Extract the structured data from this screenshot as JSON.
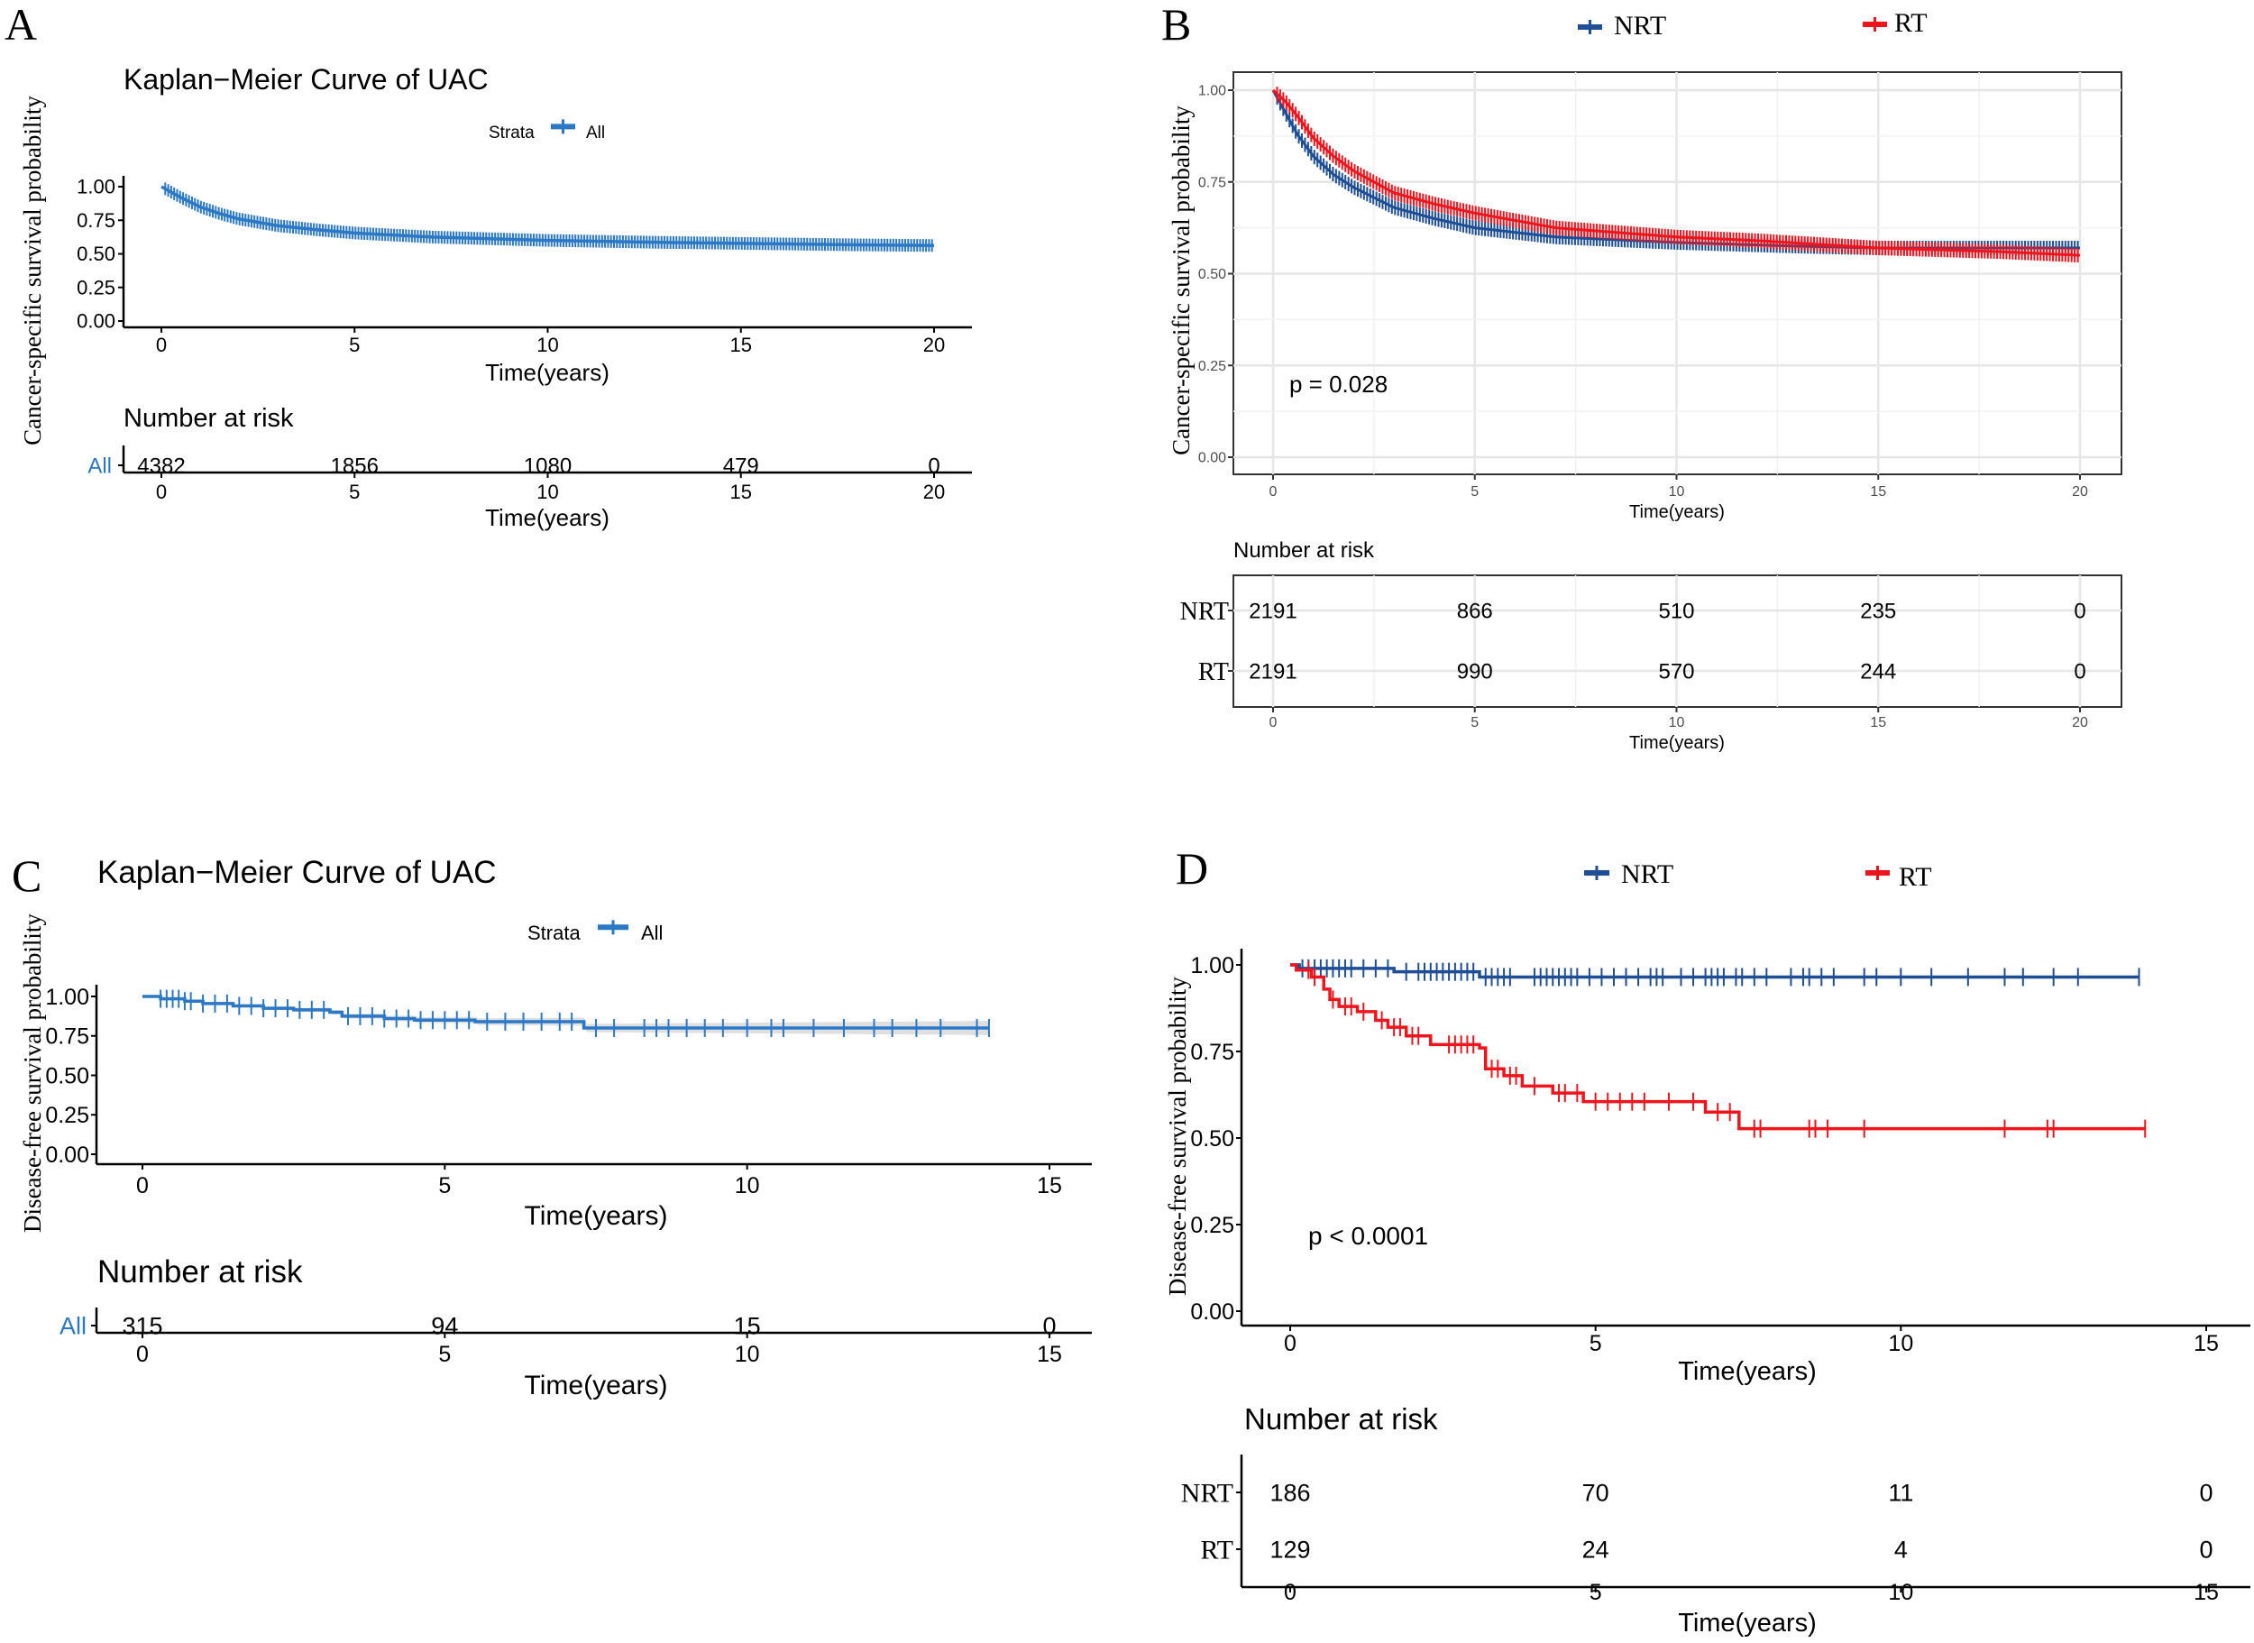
{
  "chart_data": [
    {
      "panel_label": "A",
      "type": "line",
      "title": "Kaplan−Meier Curve of UAC",
      "ylabel": "Cancer-specific survival probability",
      "xlabel": "Time(years)",
      "xlim": [
        0,
        20
      ],
      "ylim": [
        0,
        1
      ],
      "xticks": [
        "0",
        "5",
        "10",
        "15",
        "20"
      ],
      "yticks": [
        "0.00",
        "0.25",
        "0.50",
        "0.75",
        "1.00"
      ],
      "grid": false,
      "legend": {
        "title": "Strata",
        "position": "top",
        "entries": [
          "All"
        ]
      },
      "series": [
        {
          "name": "All",
          "color": "#2a78c6",
          "step": false,
          "x": [
            0,
            0.5,
            1,
            1.5,
            2,
            3,
            4,
            5,
            7,
            10,
            13,
            15,
            18,
            20
          ],
          "y": [
            1.0,
            0.92,
            0.85,
            0.8,
            0.76,
            0.71,
            0.68,
            0.655,
            0.625,
            0.6,
            0.585,
            0.578,
            0.567,
            0.562
          ],
          "censor_marks": "dense"
        }
      ],
      "risk_table": {
        "title": "Number at risk",
        "xlabel": "Time(years)",
        "rows": [
          {
            "label": "All",
            "color": "#2a78c6",
            "values": [
              4382,
              1856,
              1080,
              479,
              0
            ]
          }
        ]
      }
    },
    {
      "panel_label": "B",
      "type": "line",
      "ylabel": "Cancer-specific survival probability",
      "xlabel": "Time(years)",
      "xlim": [
        0,
        20
      ],
      "ylim": [
        0,
        1
      ],
      "xticks": [
        "0",
        "5",
        "10",
        "15",
        "20"
      ],
      "yticks": [
        "0.00",
        "0.25",
        "0.50",
        "0.75",
        "1.00"
      ],
      "grid": true,
      "p_value": "p = 0.028",
      "legend": {
        "position": "top",
        "entries": [
          "NRT",
          "RT"
        ]
      },
      "series": [
        {
          "name": "NRT",
          "color": "#1d4e96",
          "step": false,
          "x": [
            0,
            0.3,
            0.6,
            1,
            1.5,
            2,
            3,
            4,
            5,
            7,
            10,
            13,
            15,
            20
          ],
          "y": [
            1.0,
            0.94,
            0.88,
            0.82,
            0.77,
            0.735,
            0.68,
            0.65,
            0.625,
            0.6,
            0.585,
            0.575,
            0.57,
            0.57
          ],
          "censor_marks": "dense"
        },
        {
          "name": "RT",
          "color": "#f0141c",
          "step": false,
          "x": [
            0,
            0.3,
            0.6,
            1,
            1.5,
            2,
            3,
            4,
            5,
            7,
            10,
            12,
            15,
            18,
            20
          ],
          "y": [
            1.0,
            0.97,
            0.93,
            0.87,
            0.82,
            0.78,
            0.72,
            0.69,
            0.665,
            0.625,
            0.6,
            0.59,
            0.57,
            0.56,
            0.55
          ],
          "censor_marks": "dense"
        }
      ],
      "risk_table": {
        "title": "Number at risk",
        "xlabel": "Time(years)",
        "rows": [
          {
            "label": "NRT",
            "values": [
              2191,
              866,
              510,
              235,
              0
            ]
          },
          {
            "label": "RT",
            "values": [
              2191,
              990,
              570,
              244,
              0
            ]
          }
        ]
      }
    },
    {
      "panel_label": "C",
      "type": "line",
      "title": "Kaplan−Meier Curve of UAC",
      "ylabel": "Disease-free survival probability",
      "xlabel": "Time(years)",
      "xlim": [
        0,
        15
      ],
      "ylim": [
        0,
        1
      ],
      "xticks": [
        "0",
        "5",
        "10",
        "15"
      ],
      "yticks": [
        "0.00",
        "0.25",
        "0.50",
        "0.75",
        "1.00"
      ],
      "grid": false,
      "confidence_band": true,
      "legend": {
        "title": "Strata",
        "position": "top",
        "entries": [
          "All"
        ]
      },
      "series": [
        {
          "name": "All",
          "color": "#2a78c6",
          "step": true,
          "x": [
            0,
            0.3,
            0.7,
            1.0,
            1.5,
            2.0,
            2.5,
            3.1,
            3.3,
            4.0,
            4.5,
            5.5,
            7.3,
            14.0
          ],
          "y": [
            1.0,
            0.985,
            0.97,
            0.955,
            0.94,
            0.925,
            0.915,
            0.9,
            0.875,
            0.86,
            0.85,
            0.84,
            0.8,
            0.8
          ],
          "censor_x": [
            0.3,
            0.4,
            0.5,
            0.6,
            0.7,
            0.8,
            1.0,
            1.2,
            1.4,
            1.6,
            1.8,
            2.0,
            2.2,
            2.4,
            2.6,
            2.8,
            3.0,
            3.4,
            3.6,
            3.8,
            4.0,
            4.2,
            4.4,
            4.6,
            4.8,
            5.0,
            5.2,
            5.4,
            5.7,
            6.0,
            6.3,
            6.6,
            6.9,
            7.1,
            7.5,
            7.8,
            8.3,
            8.5,
            8.7,
            9.0,
            9.3,
            9.6,
            10.0,
            10.4,
            10.6,
            11.1,
            11.6,
            12.1,
            12.4,
            12.8,
            13.2,
            13.8,
            14.0
          ]
        }
      ],
      "risk_table": {
        "title": "Number at risk",
        "xlabel": "Time(years)",
        "rows": [
          {
            "label": "All",
            "color": "#2a78c6",
            "values": [
              315,
              94,
              15,
              0
            ]
          }
        ]
      }
    },
    {
      "panel_label": "D",
      "type": "line",
      "ylabel": "Disease-free survival probability",
      "xlabel": "Time(years)",
      "xlim": [
        0,
        15
      ],
      "ylim": [
        0,
        1
      ],
      "xticks": [
        "0",
        "5",
        "10",
        "15"
      ],
      "yticks": [
        "0.00",
        "0.25",
        "0.50",
        "0.75",
        "1.00"
      ],
      "grid": false,
      "p_value": "p < 0.0001",
      "legend": {
        "position": "top",
        "entries": [
          "NRT",
          "RT"
        ]
      },
      "series": [
        {
          "name": "NRT",
          "color": "#1d4e96",
          "step": true,
          "x": [
            0,
            0.15,
            1.7,
            3.1,
            13.9
          ],
          "y": [
            1.0,
            0.99,
            0.98,
            0.965,
            0.965
          ],
          "censor_x": [
            0.2,
            0.3,
            0.4,
            0.5,
            0.6,
            0.7,
            0.8,
            0.9,
            1.0,
            1.2,
            1.4,
            1.6,
            1.9,
            2.1,
            2.2,
            2.3,
            2.4,
            2.5,
            2.6,
            2.7,
            2.8,
            2.9,
            3.0,
            3.2,
            3.3,
            3.4,
            3.5,
            3.6,
            4.0,
            4.1,
            4.2,
            4.3,
            4.4,
            4.5,
            4.6,
            4.7,
            4.9,
            5.1,
            5.3,
            5.5,
            5.7,
            5.9,
            6.0,
            6.1,
            6.4,
            6.6,
            6.8,
            6.9,
            7.0,
            7.1,
            7.3,
            7.4,
            7.6,
            7.8,
            8.2,
            8.4,
            8.5,
            8.7,
            8.9,
            9.4,
            9.6,
            10.0,
            10.5,
            11.1,
            11.7,
            12.0,
            12.5,
            12.9,
            13.9
          ]
        },
        {
          "name": "RT",
          "color": "#f0141c",
          "step": true,
          "x": [
            0,
            0.1,
            0.35,
            0.55,
            0.65,
            0.8,
            1.1,
            1.4,
            1.6,
            1.9,
            2.3,
            3.1,
            3.2,
            3.5,
            3.8,
            4.3,
            4.8,
            6.8,
            7.35,
            14.0
          ],
          "y": [
            1.0,
            0.985,
            0.965,
            0.93,
            0.9,
            0.88,
            0.865,
            0.84,
            0.82,
            0.795,
            0.77,
            0.76,
            0.7,
            0.68,
            0.65,
            0.63,
            0.605,
            0.575,
            0.527,
            0.527
          ],
          "censor_x": [
            0.3,
            0.4,
            0.7,
            0.9,
            1.0,
            1.2,
            1.5,
            1.7,
            1.8,
            2.0,
            2.1,
            2.6,
            2.7,
            2.8,
            2.9,
            3.0,
            3.3,
            3.4,
            3.6,
            3.7,
            4.0,
            4.4,
            4.5,
            4.7,
            5.0,
            5.2,
            5.4,
            5.6,
            5.8,
            6.2,
            6.6,
            7.0,
            7.2,
            7.6,
            7.7,
            8.5,
            8.6,
            8.8,
            9.4,
            11.7,
            12.4,
            12.5,
            14.0
          ]
        }
      ],
      "risk_table": {
        "title": "Number at risk",
        "xlabel": "Time(years)",
        "rows": [
          {
            "label": "NRT",
            "values": [
              186,
              70,
              11,
              0
            ]
          },
          {
            "label": "RT",
            "values": [
              129,
              24,
              4,
              0
            ]
          }
        ]
      }
    }
  ]
}
